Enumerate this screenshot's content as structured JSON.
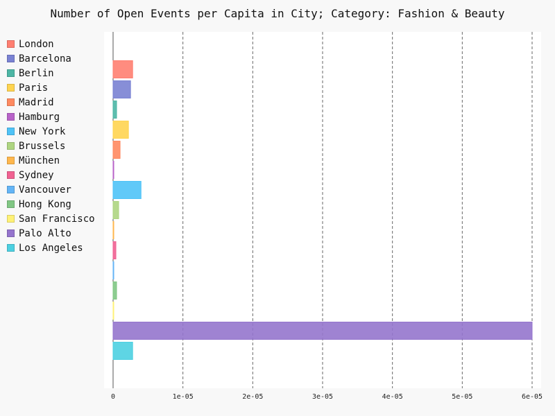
{
  "chart_data": {
    "type": "bar",
    "orientation": "horizontal",
    "title": "Number of Open Events per Capita in City; Category: Fashion & Beauty",
    "xlabel": "",
    "ylabel": "",
    "xlim": [
      0,
      6e-05
    ],
    "x_ticks": [
      "0",
      "1e-05",
      "2e-05",
      "3e-05",
      "4e-05",
      "5e-05",
      "6e-05"
    ],
    "x_tick_values": [
      0,
      1e-05,
      2e-05,
      3e-05,
      4e-05,
      5e-05,
      6e-05
    ],
    "grid": "vertical dashed",
    "legend_position": "left",
    "categories": [
      "London",
      "Barcelona",
      "Berlin",
      "Paris",
      "Madrid",
      "Hamburg",
      "New York",
      "Brussels",
      "München",
      "Sydney",
      "Vancouver",
      "Hong Kong",
      "San Francisco",
      "Palo Alto",
      "Los Angeles"
    ],
    "values": [
      2.8e-06,
      2.5e-06,
      5e-07,
      2.2e-06,
      1e-06,
      1e-07,
      4e-06,
      8e-07,
      1e-07,
      4e-07,
      1e-07,
      5e-07,
      1e-07,
      6e-05,
      2.8e-06
    ],
    "colors": [
      "#ff7f71",
      "#7a82d3",
      "#4db6a5",
      "#ffd450",
      "#ff8a60",
      "#b863c8",
      "#4fc3f7",
      "#aed581",
      "#ffb74d",
      "#f06292",
      "#64b5f6",
      "#81c784",
      "#fff176",
      "#9575cd",
      "#4dd0e1"
    ]
  }
}
